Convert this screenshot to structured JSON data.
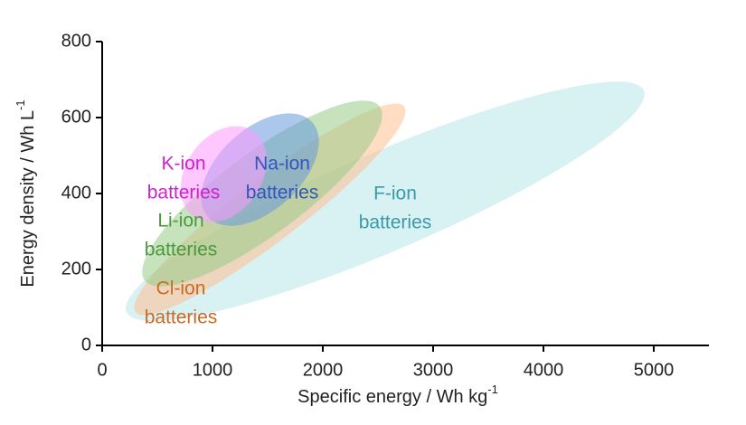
{
  "chart_data": {
    "type": "ellipse",
    "xlabel": {
      "text": "Specific energy / Wh kg",
      "sup": "-1"
    },
    "ylabel": {
      "text": "Energy density / Wh L",
      "sup": "-1"
    },
    "xlim": [
      0,
      5500
    ],
    "xticks": [
      0,
      1000,
      2000,
      3000,
      4000,
      5000
    ],
    "ylim": [
      0,
      800
    ],
    "yticks": [
      0,
      200,
      400,
      600,
      800
    ],
    "regions": [
      {
        "label": [
          "F-ion",
          "batteries"
        ],
        "color": "#b8e6ea",
        "label_color": "#3a9aa8",
        "x": [
          220,
          4910
        ],
        "y": [
          88,
          671
        ],
        "width": 260
      },
      {
        "label": [
          "Cl-ion",
          "batteries"
        ],
        "color": "#ffc090",
        "label_color": "#cc6a22",
        "x": [
          303,
          2738
        ],
        "y": [
          88,
          629
        ],
        "width": 165
      },
      {
        "label": [
          "Li-ion",
          "batteries"
        ],
        "color": "#99cc88",
        "label_color": "#4a9a3a",
        "x": [
          385,
          2516
        ],
        "y": [
          171,
          629
        ],
        "width": 215
      },
      {
        "label": [
          "Na-ion",
          "batteries"
        ],
        "color": "#6699dd",
        "label_color": "#3355bb",
        "x": [
          959,
          1902
        ],
        "y": [
          338,
          588
        ],
        "width": 215
      },
      {
        "label": [
          "K-ion",
          "batteries"
        ],
        "color": "#ff99ff",
        "label_color": "#cc22cc",
        "x": [
          836,
          1369
        ],
        "y": [
          338,
          564
        ],
        "width": 200
      }
    ]
  }
}
